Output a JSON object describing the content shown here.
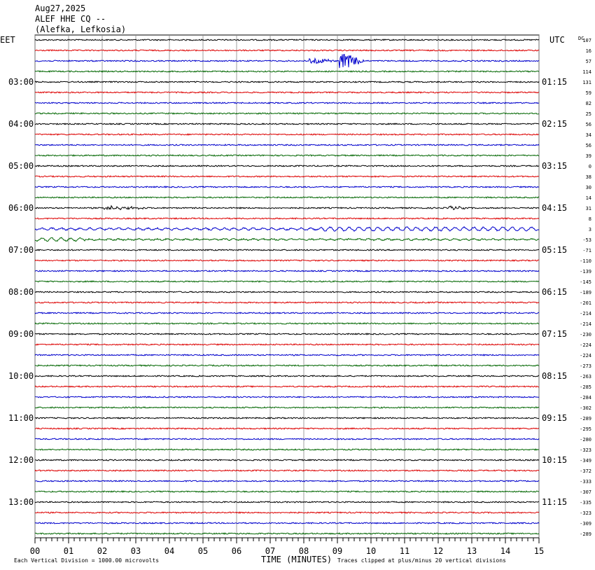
{
  "header": {
    "date": "Aug27,2025",
    "station": "ALEF HHE CQ --",
    "location": "(Alefka, Lefkosia)"
  },
  "left_zone_label": "EET",
  "right_zone_label": "UTC",
  "dc_label": "DC",
  "chart_data": {
    "type": "line",
    "description_kind": "helicorder",
    "xlabel": "TIME (MINUTES)",
    "x_ticks": [
      "00",
      "01",
      "02",
      "03",
      "04",
      "05",
      "06",
      "07",
      "08",
      "09",
      "10",
      "11",
      "12",
      "13",
      "14",
      "15"
    ],
    "xlim": [
      0,
      15
    ],
    "trace_colors": [
      "#000000",
      "#dd0000",
      "#0000cc",
      "#006600"
    ],
    "left_hour_labels": [
      "03:00",
      "04:00",
      "05:00",
      "06:00",
      "07:00",
      "08:00",
      "09:00",
      "10:00",
      "11:00",
      "12:00",
      "13:00"
    ],
    "right_hour_labels": [
      "01:15",
      "02:15",
      "03:15",
      "04:15",
      "05:15",
      "06:15",
      "07:15",
      "08:15",
      "09:15",
      "10:15",
      "11:15"
    ],
    "dc_offsets": [
      "107",
      "16",
      "57",
      "114",
      "131",
      "59",
      "82",
      "25",
      "56",
      "34",
      "56",
      "39",
      "0",
      "38",
      "30",
      "14",
      "31",
      "8",
      "3",
      "-53",
      "-71",
      "-110",
      "-139",
      "-145",
      "-189",
      "-201",
      "-214",
      "-214",
      "-230",
      "-224",
      "-224",
      "-273",
      "-263",
      "-285",
      "-284",
      "-302",
      "-289",
      "-295",
      "-280",
      "-323",
      "-349",
      "-372",
      "-333",
      "-307",
      "-335",
      "-323",
      "-309",
      "-289"
    ],
    "events": [
      {
        "trace": 2,
        "start_min": 8.15,
        "end_min": 8.9,
        "amplitude": "moderate"
      },
      {
        "trace": 2,
        "start_min": 9.05,
        "end_min": 9.8,
        "amplitude": "large"
      },
      {
        "trace": 16,
        "start_min": 2.05,
        "end_min": 3.3,
        "amplitude": "small"
      },
      {
        "trace": 16,
        "start_min": 12.3,
        "end_min": 12.8,
        "amplitude": "small"
      }
    ]
  },
  "footer": {
    "scale_note": "Each Vertical Division = 1000.00 microvolts",
    "clip_note": "Traces clipped at plus/minus 20 vertical divisions"
  }
}
